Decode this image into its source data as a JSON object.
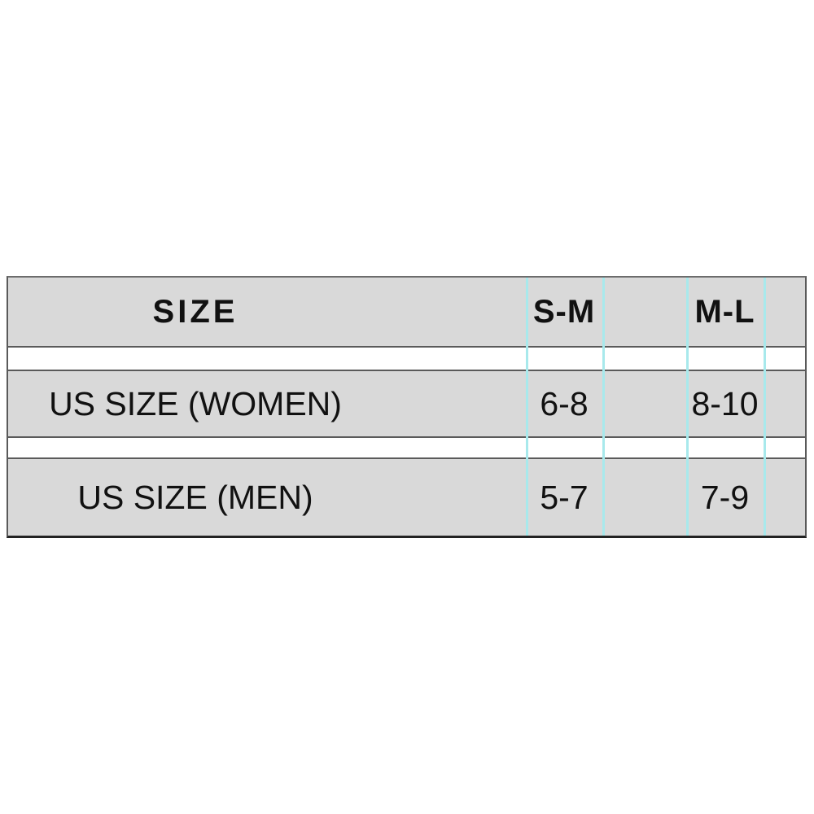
{
  "chart_data": {
    "type": "table",
    "columns": [
      "SIZE",
      "S-M",
      "M-L"
    ],
    "rows": [
      [
        "US SIZE (WOMEN)",
        "6-8",
        "8-10"
      ],
      [
        "US SIZE (MEN)",
        "5-7",
        "7-9"
      ]
    ],
    "layout_hints": {
      "grid": "horizontal gray bands separated by white spacer gaps",
      "guide_lines_x": [
        646,
        740,
        843,
        938
      ],
      "header_bold": true
    }
  },
  "table": {
    "header": [
      "SIZE",
      "S-M",
      "M-L"
    ],
    "rows": [
      [
        "US SIZE (WOMEN)",
        "6-8",
        "8-10"
      ],
      [
        "US SIZE (MEN)",
        "5-7",
        "7-9"
      ]
    ]
  },
  "colors": {
    "band_background": "#d9d9d9",
    "band_border": "#5a5a5a",
    "table_bottom_border": "#222222",
    "guide_line": "#a8e9ec",
    "text": "#111111",
    "page_background": "#ffffff"
  }
}
